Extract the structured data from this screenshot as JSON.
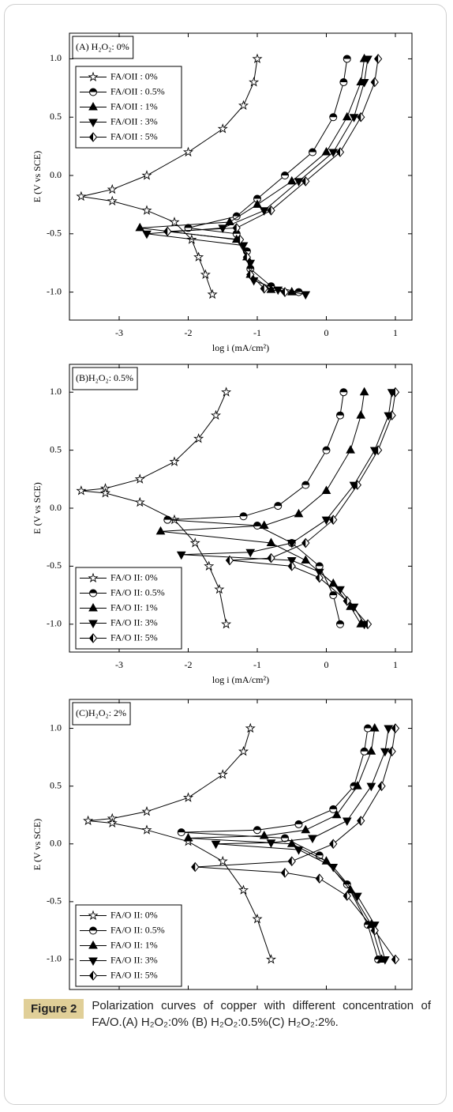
{
  "chart_data": [
    {
      "type": "line",
      "title": "(A) H₂O₂: 0%",
      "xlabel": "log i (mA/cm²)",
      "ylabel": "E (V vs SCE)",
      "xlim": [
        -3.72,
        1.24
      ],
      "ylim": [
        -1.24,
        1.22
      ],
      "xticks": [
        -3,
        -2,
        -1,
        0,
        1
      ],
      "yticks": [
        {
          "value": 1,
          "label": "1.0"
        },
        0.5,
        {
          "value": 0,
          "label": "0.0"
        },
        -0.5,
        {
          "value": -1,
          "label": "-1.0"
        }
      ],
      "legend": "upper left",
      "color": "#000000",
      "series": [
        {
          "name": "FA/OII : 0%",
          "marker": "star",
          "x": [
            -1.0,
            -1.05,
            -1.2,
            -1.5,
            -2.0,
            -2.6,
            -3.1,
            -3.55,
            -3.1,
            -2.6,
            -2.2,
            -1.95,
            -1.85,
            -1.75,
            -1.65
          ],
          "values": [
            1.0,
            0.8,
            0.6,
            0.4,
            0.2,
            0.0,
            -0.12,
            -0.18,
            -0.22,
            -0.3,
            -0.4,
            -0.55,
            -0.7,
            -0.85,
            -1.02
          ]
        },
        {
          "name": "FA/OII : 0.5%",
          "marker": "circle-half",
          "x": [
            0.3,
            0.25,
            0.1,
            -0.2,
            -0.6,
            -1.0,
            -1.3,
            -2.0,
            -1.3,
            -1.15,
            -1.1,
            -0.8,
            -0.4
          ],
          "values": [
            1.0,
            0.8,
            0.5,
            0.2,
            0.0,
            -0.2,
            -0.35,
            -0.45,
            -0.5,
            -0.65,
            -0.8,
            -0.95,
            -1.0
          ]
        },
        {
          "name": "FA/OII : 1%",
          "marker": "triangle-up",
          "x": [
            0.55,
            0.5,
            0.3,
            0.0,
            -0.5,
            -1.0,
            -1.4,
            -2.7,
            -1.3,
            -1.15,
            -1.1,
            -0.8,
            -0.5
          ],
          "values": [
            1.0,
            0.8,
            0.5,
            0.2,
            -0.05,
            -0.25,
            -0.4,
            -0.45,
            -0.55,
            -0.7,
            -0.85,
            -0.98,
            -1.0
          ]
        },
        {
          "name": "FA/OII : 3%",
          "marker": "triangle-down",
          "x": [
            0.6,
            0.55,
            0.4,
            0.1,
            -0.4,
            -0.9,
            -1.5,
            -2.6,
            -1.2,
            -1.1,
            -1.05,
            -0.7,
            -0.3
          ],
          "values": [
            1.0,
            0.8,
            0.5,
            0.2,
            -0.05,
            -0.3,
            -0.45,
            -0.5,
            -0.6,
            -0.75,
            -0.9,
            -0.98,
            -1.02
          ]
        },
        {
          "name": "FA/OII : 5%",
          "marker": "diamond-half",
          "x": [
            0.75,
            0.7,
            0.5,
            0.2,
            -0.3,
            -0.8,
            -1.3,
            -2.3,
            -1.25,
            -1.15,
            -1.1,
            -0.9,
            -0.6
          ],
          "values": [
            1.0,
            0.8,
            0.5,
            0.2,
            -0.05,
            -0.3,
            -0.45,
            -0.48,
            -0.55,
            -0.7,
            -0.85,
            -0.97,
            -1.0
          ]
        }
      ]
    },
    {
      "type": "line",
      "title": "(B)H₂O₂: 0.5%",
      "xlabel": "log i (mA/cm²)",
      "ylabel": "E (V vs SCE)",
      "xlim": [
        -3.72,
        1.24
      ],
      "ylim": [
        -1.24,
        1.24
      ],
      "xticks": [
        -3,
        -2,
        -1,
        0,
        1
      ],
      "yticks": [
        {
          "value": 1,
          "label": "1.0"
        },
        0.5,
        {
          "value": 0,
          "label": "0.0"
        },
        -0.5,
        {
          "value": -1,
          "label": "-1.0"
        }
      ],
      "legend": "lower left",
      "color": "#000000",
      "series": [
        {
          "name": "FA/O II: 0%",
          "marker": "star",
          "x": [
            -1.45,
            -1.6,
            -1.85,
            -2.2,
            -2.7,
            -3.2,
            -3.55,
            -3.2,
            -2.7,
            -2.2,
            -1.9,
            -1.7,
            -1.55,
            -1.45
          ],
          "values": [
            1.0,
            0.8,
            0.6,
            0.4,
            0.25,
            0.17,
            0.15,
            0.13,
            0.05,
            -0.1,
            -0.3,
            -0.5,
            -0.7,
            -1.0
          ]
        },
        {
          "name": "FA/O II: 0.5%",
          "marker": "circle-half",
          "x": [
            0.25,
            0.2,
            0.0,
            -0.3,
            -0.7,
            -1.2,
            -2.3,
            -1.0,
            -0.5,
            -0.1,
            0.1,
            0.2
          ],
          "values": [
            1.0,
            0.8,
            0.5,
            0.2,
            0.02,
            -0.07,
            -0.1,
            -0.15,
            -0.3,
            -0.5,
            -0.75,
            -1.0
          ]
        },
        {
          "name": "FA/O II: 1%",
          "marker": "triangle-up",
          "x": [
            0.55,
            0.5,
            0.35,
            0.0,
            -0.4,
            -0.9,
            -2.4,
            -0.8,
            -0.3,
            0.1,
            0.35,
            0.5
          ],
          "values": [
            1.0,
            0.8,
            0.5,
            0.15,
            -0.05,
            -0.15,
            -0.2,
            -0.3,
            -0.45,
            -0.65,
            -0.85,
            -1.0
          ]
        },
        {
          "name": "FA/O II: 3%",
          "marker": "triangle-down",
          "x": [
            0.95,
            0.9,
            0.7,
            0.4,
            0.0,
            -0.5,
            -1.1,
            -2.1,
            -0.5,
            -0.1,
            0.2,
            0.4,
            0.55
          ],
          "values": [
            1.0,
            0.8,
            0.5,
            0.2,
            -0.1,
            -0.3,
            -0.38,
            -0.4,
            -0.45,
            -0.55,
            -0.7,
            -0.85,
            -1.0
          ]
        },
        {
          "name": "FA/O II: 5%",
          "marker": "diamond-half",
          "x": [
            1.0,
            0.95,
            0.75,
            0.45,
            0.1,
            -0.3,
            -0.8,
            -1.4,
            -0.5,
            -0.1,
            0.3,
            0.6
          ],
          "values": [
            1.0,
            0.8,
            0.5,
            0.2,
            -0.1,
            -0.3,
            -0.43,
            -0.45,
            -0.5,
            -0.6,
            -0.8,
            -1.0
          ]
        }
      ]
    },
    {
      "type": "line",
      "title": "(C)H₂O₂: 2%",
      "xlabel": "log i (mA/cm²)",
      "ylabel": "E (V vs SCE)",
      "xlim": [
        -3.72,
        1.24
      ],
      "ylim": [
        -1.26,
        1.25
      ],
      "xticks": [
        -3,
        -2,
        -1,
        0,
        1
      ],
      "yticks": [
        {
          "value": 1,
          "label": "1.0"
        },
        0.5,
        {
          "value": 0,
          "label": "0.0"
        },
        -0.5,
        {
          "value": -1,
          "label": "-1.0"
        }
      ],
      "legend": "lower left",
      "color": "#000000",
      "series": [
        {
          "name": "FA/O II: 0%",
          "marker": "star",
          "x": [
            -1.1,
            -1.2,
            -1.5,
            -2.0,
            -2.6,
            -3.1,
            -3.45,
            -3.1,
            -2.6,
            -2.0,
            -1.5,
            -1.2,
            -1.0,
            -0.8
          ],
          "values": [
            1.0,
            0.8,
            0.6,
            0.4,
            0.28,
            0.22,
            0.2,
            0.18,
            0.12,
            0.02,
            -0.15,
            -0.4,
            -0.65,
            -1.0
          ]
        },
        {
          "name": "FA/O II: 0.5%",
          "marker": "circle-half",
          "x": [
            0.6,
            0.55,
            0.4,
            0.1,
            -0.4,
            -1.0,
            -2.1,
            -0.6,
            -0.1,
            0.3,
            0.6,
            0.75
          ],
          "values": [
            1.0,
            0.8,
            0.5,
            0.3,
            0.17,
            0.12,
            0.1,
            0.05,
            -0.1,
            -0.35,
            -0.7,
            -1.0
          ]
        },
        {
          "name": "FA/O II: 1%",
          "marker": "triangle-up",
          "x": [
            0.7,
            0.65,
            0.45,
            0.15,
            -0.3,
            -0.9,
            -2.0,
            -0.5,
            0.0,
            0.35,
            0.65,
            0.8
          ],
          "values": [
            1.0,
            0.8,
            0.5,
            0.25,
            0.12,
            0.07,
            0.05,
            0.0,
            -0.15,
            -0.4,
            -0.7,
            -1.0
          ]
        },
        {
          "name": "FA/O II: 3%",
          "marker": "triangle-down",
          "x": [
            0.9,
            0.85,
            0.65,
            0.3,
            -0.2,
            -0.8,
            -1.6,
            -0.4,
            0.1,
            0.45,
            0.7,
            0.85
          ],
          "values": [
            1.0,
            0.8,
            0.5,
            0.2,
            0.05,
            0.01,
            0.0,
            -0.05,
            -0.2,
            -0.45,
            -0.7,
            -1.0
          ]
        },
        {
          "name": "FA/O II: 5%",
          "marker": "diamond-half",
          "x": [
            1.0,
            0.95,
            0.8,
            0.5,
            0.1,
            -0.5,
            -1.9,
            -0.6,
            -0.1,
            0.3,
            0.7,
            1.0
          ],
          "values": [
            1.0,
            0.8,
            0.5,
            0.2,
            0.0,
            -0.15,
            -0.2,
            -0.25,
            -0.3,
            -0.45,
            -0.75,
            -1.0
          ]
        }
      ]
    }
  ],
  "figure": {
    "label": "Figure 2",
    "caption": "Polarization curves of copper with different concentration of FA/O.(A) H₂O₂:0% (B) H₂O₂:0.5%(C) H₂O₂:2%."
  }
}
